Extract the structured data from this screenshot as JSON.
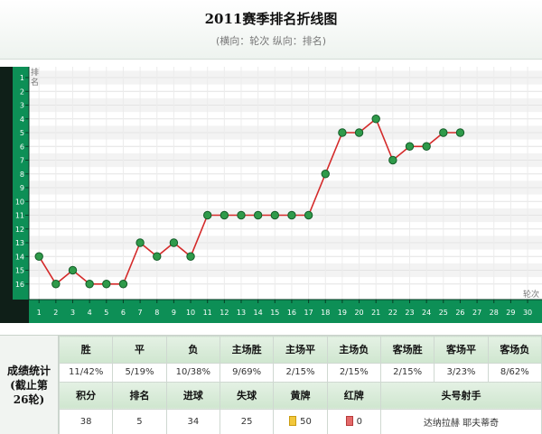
{
  "header": {
    "title": "2011赛季排名折线图",
    "subtitle": "(横向：轮次 纵向：排名)"
  },
  "chart_data": {
    "type": "line",
    "title": "2011赛季排名折线图",
    "subtitle": "(横向：轮次 纵向：排名)",
    "xlabel": "轮次",
    "ylabel": "排名",
    "x_ticks": [
      1,
      2,
      3,
      4,
      5,
      6,
      7,
      8,
      9,
      10,
      11,
      12,
      13,
      14,
      15,
      16,
      17,
      18,
      19,
      20,
      21,
      22,
      23,
      24,
      25,
      26,
      27,
      28,
      29,
      30
    ],
    "y_ticks": [
      1,
      2,
      3,
      4,
      5,
      6,
      7,
      8,
      9,
      10,
      11,
      12,
      13,
      14,
      15,
      16
    ],
    "xlim": [
      1,
      30
    ],
    "ylim": [
      1,
      16
    ],
    "y_inverted": true,
    "grid": true,
    "x": [
      1,
      2,
      3,
      4,
      5,
      6,
      7,
      8,
      9,
      10,
      11,
      12,
      13,
      14,
      15,
      16,
      17,
      18,
      19,
      20,
      21,
      22,
      23,
      24,
      25,
      26
    ],
    "values": [
      14,
      16,
      15,
      16,
      16,
      16,
      13,
      14,
      13,
      14,
      11,
      11,
      11,
      11,
      11,
      11,
      11,
      8,
      5,
      5,
      4,
      7,
      6,
      6,
      5,
      5
    ],
    "colors": {
      "line": "#d42a2a",
      "marker": "#2f9a4a",
      "marker_edge": "#135c28",
      "axis_bg": "#0d8f56"
    }
  },
  "stats": {
    "label": "成绩统计(截止第26轮)",
    "row1_headers": [
      "胜",
      "平",
      "负",
      "主场胜",
      "主场平",
      "主场负",
      "客场胜",
      "客场平",
      "客场负"
    ],
    "row1_values": [
      "11/42%",
      "5/19%",
      "10/38%",
      "9/69%",
      "2/15%",
      "2/15%",
      "2/15%",
      "3/23%",
      "8/62%"
    ],
    "row2_headers": [
      "积分",
      "排名",
      "进球",
      "失球",
      "黄牌",
      "红牌",
      "头号射手"
    ],
    "row2_values": {
      "points": "38",
      "rank": "5",
      "goals_for": "34",
      "goals_against": "25",
      "yellow_cards": "50",
      "red_cards": "0",
      "top_scorer": "达纳拉赫 耶夫蒂奇"
    }
  }
}
